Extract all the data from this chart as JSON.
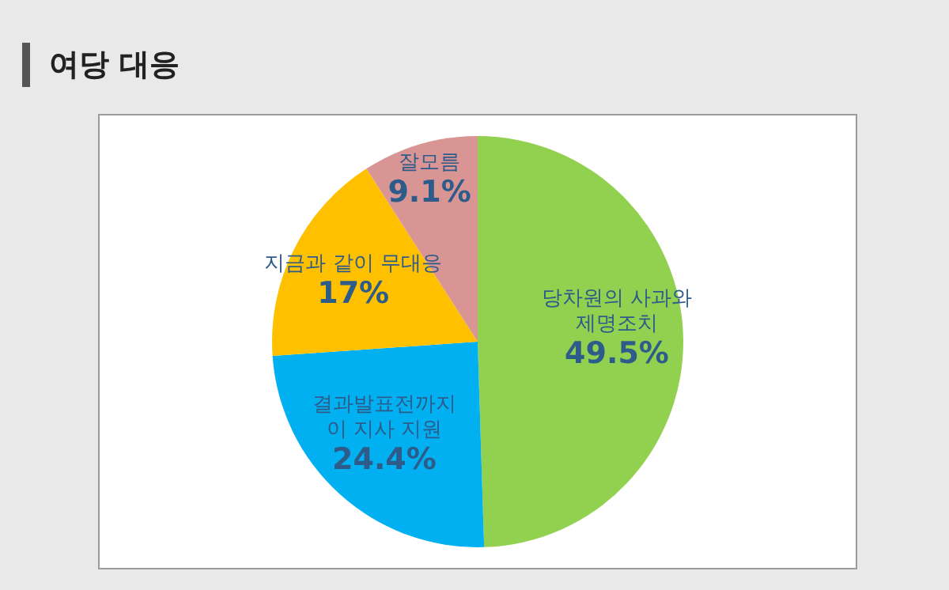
{
  "chart_data": {
    "type": "pie",
    "title": "여당 대응",
    "categories": [
      "당차원의 사과와\n제명조치",
      "결과발표전까지\n이 지사 지원",
      "지금과 같이 무대응",
      "잘모름"
    ],
    "values": [
      49.5,
      24.4,
      17,
      9.1
    ],
    "colors": [
      "#92d050",
      "#00b0f0",
      "#ffc000",
      "#d99594"
    ],
    "value_labels": [
      "49.5%",
      "24.4%",
      "17%",
      "9.1%"
    ]
  }
}
